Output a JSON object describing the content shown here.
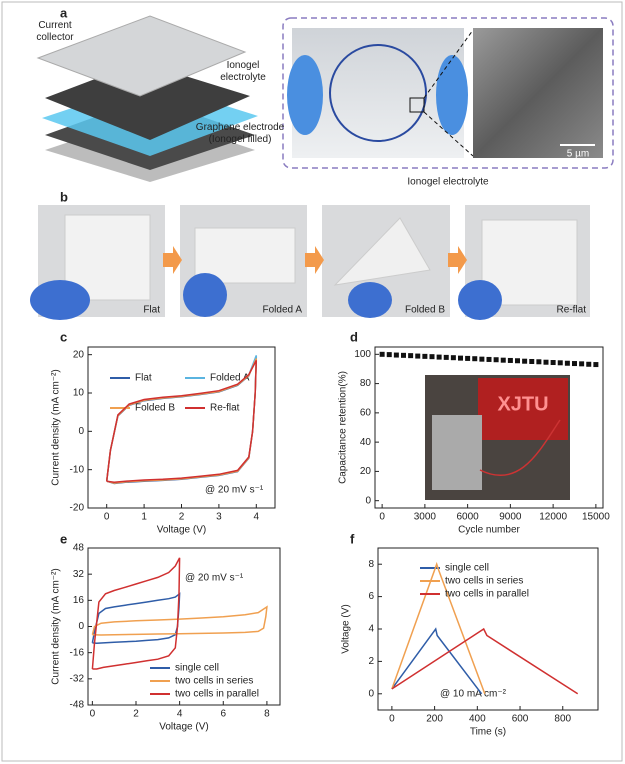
{
  "figure": {
    "panel_labels": [
      "a",
      "b",
      "c",
      "d",
      "e",
      "f"
    ],
    "a_labels": [
      "Current collector",
      "Ionogel electrolyte",
      "Graphene electrode (Ionogel filled)"
    ],
    "scale_bar": "5 µm",
    "caption": "Ionogel electrolyte",
    "b_labels": [
      "Flat",
      "Folded A",
      "Folded B",
      "Re-flat"
    ],
    "inset_text": "XJTU"
  },
  "chart_data": [
    {
      "type": "line",
      "xlabel": "Voltage (V)",
      "ylabel": "Current density (mA cm⁻²)",
      "xlim": [
        -0.5,
        4.5
      ],
      "ylim": [
        -20,
        22
      ],
      "xticks": [
        0,
        1,
        2,
        3,
        4
      ],
      "yticks": [
        -20,
        -10,
        0,
        10,
        20
      ],
      "annotation": "@ 20 mV s⁻¹",
      "series": [
        {
          "name": "Flat",
          "color": "#2f5da8",
          "x": [
            0,
            0.1,
            0.3,
            0.6,
            1,
            1.5,
            2,
            2.5,
            3,
            3.5,
            3.8,
            4,
            3.97,
            3.9,
            3.8,
            3.5,
            3,
            2.5,
            2,
            1.5,
            1,
            0.5,
            0.2,
            0
          ],
          "values": [
            -13,
            -5,
            4,
            6.8,
            8,
            8.6,
            9,
            9.6,
            10.3,
            12,
            14.5,
            19.5,
            10,
            0,
            -7,
            -10.5,
            -11.5,
            -12,
            -12.5,
            -12.8,
            -13,
            -13.3,
            -13.6,
            -13
          ]
        },
        {
          "name": "Folded A",
          "color": "#5ab4e0",
          "x": [
            0,
            0.1,
            0.3,
            0.6,
            1,
            1.5,
            2,
            2.5,
            3,
            3.5,
            3.8,
            4,
            3.97,
            3.9,
            3.8,
            3.5,
            3,
            2.5,
            2,
            1.5,
            1,
            0.5,
            0.2,
            0
          ],
          "values": [
            -13,
            -5,
            4.2,
            7,
            8.2,
            8.8,
            9.2,
            9.8,
            10.5,
            12.2,
            14.7,
            19.8,
            10,
            0,
            -6.8,
            -10.3,
            -11.3,
            -11.8,
            -12.3,
            -12.6,
            -12.8,
            -13.1,
            -13.4,
            -13
          ]
        },
        {
          "name": "Folded B",
          "color": "#f0a050",
          "x": [
            0,
            0.1,
            0.3,
            0.6,
            1,
            1.5,
            2,
            2.5,
            3,
            3.5,
            3.8,
            4,
            3.97,
            3.9,
            3.8,
            3.5,
            3,
            2.5,
            2,
            1.5,
            1,
            0.5,
            0.2,
            0
          ],
          "values": [
            -13,
            -5,
            4.1,
            6.9,
            8.1,
            8.7,
            9.1,
            9.7,
            10.4,
            12.1,
            14.6,
            19,
            10,
            0,
            -6.9,
            -10.4,
            -11.4,
            -11.9,
            -12.4,
            -12.7,
            -12.9,
            -13.2,
            -13.5,
            -13
          ]
        },
        {
          "name": "Re-flat",
          "color": "#d03030",
          "x": [
            0,
            0.1,
            0.3,
            0.6,
            1,
            1.5,
            2,
            2.5,
            3,
            3.5,
            3.8,
            4,
            3.97,
            3.9,
            3.8,
            3.5,
            3,
            2.5,
            2,
            1.5,
            1,
            0.5,
            0.2,
            0
          ],
          "values": [
            -13,
            -5,
            4.3,
            7.1,
            8.3,
            8.9,
            9.3,
            9.9,
            10.6,
            12.3,
            14.8,
            18.5,
            10,
            0,
            -6.7,
            -10.2,
            -11.2,
            -11.7,
            -12.2,
            -12.5,
            -12.7,
            -13,
            -13.3,
            -13
          ]
        }
      ]
    },
    {
      "type": "scatter",
      "xlabel": "Cycle number",
      "ylabel": "Capacitance retention(%)",
      "xlim": [
        -500,
        15500
      ],
      "ylim": [
        -5,
        105
      ],
      "xticks": [
        0,
        3000,
        6000,
        9000,
        12000,
        15000
      ],
      "yticks": [
        0,
        20,
        40,
        60,
        80,
        100
      ],
      "series": [
        {
          "color": "#111111",
          "x": [
            0,
            500,
            1000,
            1500,
            2000,
            2500,
            3000,
            3500,
            4000,
            4500,
            5000,
            5500,
            6000,
            6500,
            7000,
            7500,
            8000,
            8500,
            9000,
            9500,
            10000,
            10500,
            11000,
            11500,
            12000,
            12500,
            13000,
            13500,
            14000,
            14500,
            15000
          ],
          "values": [
            100,
            99.8,
            99.5,
            99.3,
            99.1,
            98.8,
            98.6,
            98.4,
            98.1,
            97.9,
            97.7,
            97.4,
            97.2,
            97.0,
            96.7,
            96.5,
            96.3,
            96.0,
            95.8,
            95.6,
            95.3,
            95.1,
            94.9,
            94.6,
            94.4,
            94.2,
            93.9,
            93.7,
            93.5,
            93.2,
            93.0
          ]
        }
      ]
    },
    {
      "type": "line",
      "xlabel": "Voltage (V)",
      "ylabel": "Current density (mA cm⁻²)",
      "xlim": [
        -0.2,
        8.6
      ],
      "ylim": [
        -48,
        48
      ],
      "xticks": [
        0,
        2,
        4,
        6,
        8
      ],
      "yticks": [
        -48,
        -32,
        -16,
        0,
        16,
        32,
        48
      ],
      "annotation": "@ 20 mV s⁻¹",
      "series": [
        {
          "name": "single cell",
          "color": "#2f5da8",
          "x": [
            0,
            0.1,
            0.3,
            0.6,
            1,
            1.5,
            2,
            2.5,
            3,
            3.5,
            3.8,
            4,
            3.97,
            3.9,
            3.8,
            3.5,
            3,
            2.5,
            2,
            1.5,
            1,
            0.5,
            0.2,
            0
          ],
          "values": [
            -10,
            -3,
            8,
            11,
            12,
            13,
            14,
            15,
            16,
            17,
            18,
            20,
            12,
            0,
            -5,
            -7,
            -8,
            -8.5,
            -9,
            -9.3,
            -9.6,
            -10,
            -10.3,
            -10
          ]
        },
        {
          "name": "two cells in series",
          "color": "#f0a050",
          "x": [
            0,
            0.1,
            0.4,
            1,
            2,
            3,
            4,
            5,
            6,
            7,
            7.6,
            8,
            7.95,
            7.85,
            7.6,
            7,
            6,
            5,
            4,
            3,
            2,
            1,
            0.4,
            0
          ],
          "values": [
            -5,
            0,
            2,
            2.8,
            3.5,
            4,
            4.5,
            5.2,
            6,
            7.2,
            8.5,
            12,
            6,
            -1,
            -3,
            -3.6,
            -4,
            -4.2,
            -4.4,
            -4.6,
            -4.8,
            -5,
            -5.2,
            -5
          ]
        },
        {
          "name": "two cells in parallel",
          "color": "#d03030",
          "x": [
            0,
            0.1,
            0.3,
            0.6,
            1,
            1.5,
            2,
            2.5,
            3,
            3.5,
            3.8,
            4,
            3.97,
            3.9,
            3.8,
            3.5,
            3,
            2.5,
            2,
            1.5,
            1,
            0.5,
            0.2,
            0
          ],
          "values": [
            -26,
            -10,
            15,
            20,
            22,
            24,
            26,
            28,
            30,
            33,
            37,
            42,
            20,
            0,
            -13,
            -18,
            -20,
            -21,
            -22,
            -23,
            -24,
            -25,
            -26,
            -26
          ]
        }
      ]
    },
    {
      "type": "line",
      "xlabel": "Time (s)",
      "ylabel": "Voltage (V)",
      "xlim": [
        -65,
        965
      ],
      "ylim": [
        -1,
        9
      ],
      "xticks": [
        0,
        200,
        400,
        600,
        800
      ],
      "yticks": [
        0,
        2,
        4,
        6,
        8
      ],
      "annotation": "@ 10 mA cm⁻²",
      "series": [
        {
          "name": "single cell",
          "color": "#2f5da8",
          "x": [
            0,
            205,
            212,
            420
          ],
          "values": [
            0.3,
            4,
            3.6,
            0
          ]
        },
        {
          "name": "two cells in series",
          "color": "#f0a050",
          "x": [
            0,
            210,
            220,
            435
          ],
          "values": [
            0.3,
            8,
            7.6,
            0
          ]
        },
        {
          "name": "two cells in parallel",
          "color": "#d03030",
          "x": [
            0,
            430,
            445,
            870
          ],
          "values": [
            0.3,
            4,
            3.6,
            0
          ]
        }
      ]
    }
  ]
}
